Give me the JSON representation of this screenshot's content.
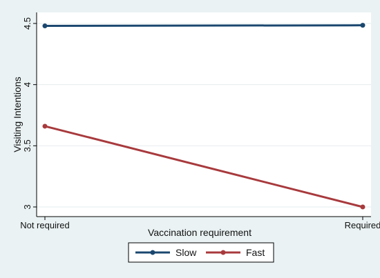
{
  "chart_data": {
    "type": "line",
    "title": "",
    "xlabel": "Vaccination requirement",
    "ylabel": "Visiting Intentions",
    "categories": [
      "Not required",
      "Required"
    ],
    "yticks": [
      3,
      3.5,
      4,
      4.5
    ],
    "ytick_labels": [
      "3",
      "3.5",
      "4",
      "4.5"
    ],
    "ylim": [
      3,
      4.5
    ],
    "grid": true,
    "legend_position": "bottom",
    "series": [
      {
        "name": "Slow",
        "values": [
          4.48,
          4.485
        ],
        "color": "#1a476f"
      },
      {
        "name": "Fast",
        "values": [
          3.66,
          3.0
        ],
        "color": "#a83a3d"
      }
    ]
  },
  "colors": {
    "background": "#eaf2f3",
    "plot_background": "#ffffff",
    "grid": "#e6ecee"
  }
}
